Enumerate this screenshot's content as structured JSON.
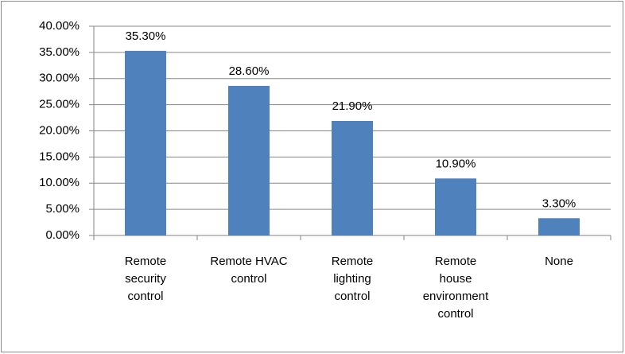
{
  "chart_data": {
    "type": "bar",
    "categories": [
      "Remote\nsecurity\ncontrol",
      "Remote HVAC\ncontrol",
      "Remote\nlighting\ncontrol",
      "Remote\nhouse\nenvironment\ncontrol",
      "None"
    ],
    "values": [
      35.3,
      28.6,
      21.9,
      10.9,
      3.3
    ],
    "value_labels": [
      "35.30%",
      "28.60%",
      "21.90%",
      "10.90%",
      "3.30%"
    ],
    "color": "#4f81bd",
    "ylim": [
      0,
      40
    ],
    "yticks": [
      {
        "value": 0,
        "label": "0.00%"
      },
      {
        "value": 5,
        "label": "5.00%"
      },
      {
        "value": 10,
        "label": "10.00%"
      },
      {
        "value": 15,
        "label": "15.00%"
      },
      {
        "value": 20,
        "label": "20.00%"
      },
      {
        "value": 25,
        "label": "25.00%"
      },
      {
        "value": 30,
        "label": "30.00%"
      },
      {
        "value": 35,
        "label": "35.00%"
      },
      {
        "value": 40,
        "label": "40.00%"
      }
    ],
    "grid": true
  }
}
